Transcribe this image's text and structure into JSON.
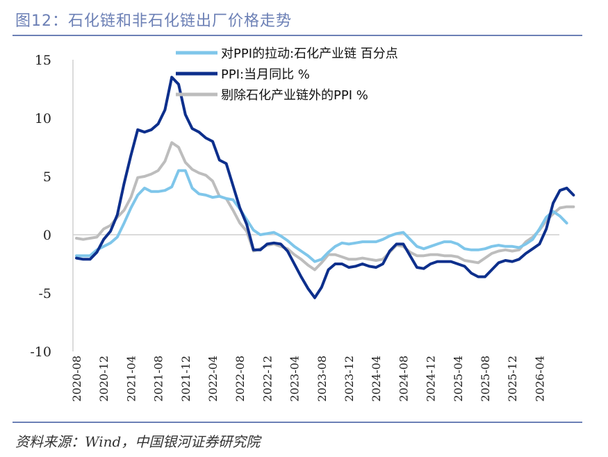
{
  "title": "图12：石化链和非石化链出厂价格走势",
  "source": "资料来源：Wind，中国银河证券研究院",
  "colors": {
    "rule": "#6b7fb5",
    "series": [
      "#7fc6ea",
      "#0d2f8c",
      "#bdbdbd"
    ]
  },
  "chart_data": {
    "type": "line",
    "ylim": [
      -10,
      15
    ],
    "yticks": [
      15,
      10,
      5,
      0,
      -5,
      -10
    ],
    "x_start": "2020-08",
    "xticks": [
      "2020-08",
      "2020-12",
      "2021-04",
      "2021-08",
      "2021-12",
      "2022-04",
      "2022-08",
      "2022-12",
      "2023-04",
      "2023-08",
      "2023-12",
      "2024-04",
      "2024-08",
      "2024-12",
      "2025-04",
      "2025-08",
      "2025-12",
      "2026-04"
    ],
    "legend_position": "top",
    "grid": false,
    "series": [
      {
        "name": "对PPI的拉动:石化产业链 百分点",
        "values": [
          -1.8,
          -1.8,
          -1.8,
          -1.3,
          -1.0,
          -0.7,
          -0.2,
          1.0,
          2.3,
          3.4,
          4.0,
          3.7,
          3.7,
          3.8,
          4.1,
          5.5,
          5.5,
          4.0,
          3.5,
          3.4,
          3.2,
          3.3,
          3.1,
          3.0,
          2.2,
          1.3,
          0.4,
          0.0,
          0.1,
          0.2,
          -0.1,
          -0.5,
          -1.0,
          -1.4,
          -1.8,
          -2.3,
          -2.1,
          -1.5,
          -1.0,
          -0.7,
          -0.8,
          -0.7,
          -0.6,
          -0.6,
          -0.6,
          -0.4,
          -0.1,
          0.1,
          0.2,
          -0.4,
          -1.0,
          -1.2,
          -1.0,
          -0.8,
          -0.6,
          -0.6,
          -0.8,
          -1.2,
          -1.3,
          -1.3,
          -1.2,
          -1.0,
          -0.9,
          -1.0,
          -1.0,
          -1.1,
          -0.8,
          -0.4,
          0.5,
          1.5,
          2.0,
          1.6,
          1.0
        ]
      },
      {
        "name": "PPI:当月同比 %",
        "values": [
          -2.0,
          -2.1,
          -2.1,
          -1.5,
          -0.4,
          0.3,
          1.7,
          4.4,
          6.8,
          9.0,
          8.8,
          9.0,
          9.5,
          10.7,
          13.5,
          12.9,
          10.3,
          9.1,
          8.8,
          8.3,
          8.0,
          6.4,
          6.1,
          4.2,
          2.3,
          0.9,
          -1.3,
          -1.3,
          -0.8,
          -0.7,
          -0.8,
          -1.4,
          -2.5,
          -3.6,
          -4.6,
          -5.4,
          -4.5,
          -3.0,
          -2.5,
          -2.5,
          -2.8,
          -2.7,
          -2.5,
          -2.7,
          -2.8,
          -2.5,
          -1.4,
          -0.8,
          -0.8,
          -1.8,
          -2.8,
          -2.9,
          -2.5,
          -2.3,
          -2.3,
          -2.3,
          -2.5,
          -2.7,
          -3.3,
          -3.6,
          -3.6,
          -3.0,
          -2.4,
          -2.2,
          -2.3,
          -2.1,
          -1.6,
          -1.2,
          -0.8,
          0.5,
          2.7,
          3.8,
          4.0,
          3.4
        ]
      },
      {
        "name": "剔除石化产业链外的PPI %",
        "values": [
          -0.3,
          -0.4,
          -0.3,
          -0.2,
          0.5,
          0.8,
          1.5,
          2.1,
          3.2,
          4.9,
          5.0,
          5.2,
          5.5,
          6.3,
          7.9,
          7.5,
          6.2,
          5.6,
          5.3,
          5.1,
          4.6,
          3.3,
          3.1,
          2.1,
          1.0,
          0.3,
          -1.4,
          -1.2,
          -0.9,
          -0.8,
          -1.0,
          -1.2,
          -1.7,
          -2.1,
          -2.6,
          -3.0,
          -2.4,
          -1.7,
          -1.7,
          -1.9,
          -2.1,
          -2.1,
          -2.0,
          -2.1,
          -2.2,
          -2.1,
          -1.5,
          -0.9,
          -1.0,
          -1.5,
          -1.8,
          -1.8,
          -1.7,
          -1.7,
          -1.8,
          -1.8,
          -1.9,
          -2.2,
          -2.3,
          -2.4,
          -2.0,
          -1.6,
          -1.4,
          -1.3,
          -1.4,
          -1.3,
          -0.6,
          -0.2,
          0.4,
          1.2,
          1.8,
          2.3,
          2.4,
          2.4
        ]
      }
    ]
  }
}
